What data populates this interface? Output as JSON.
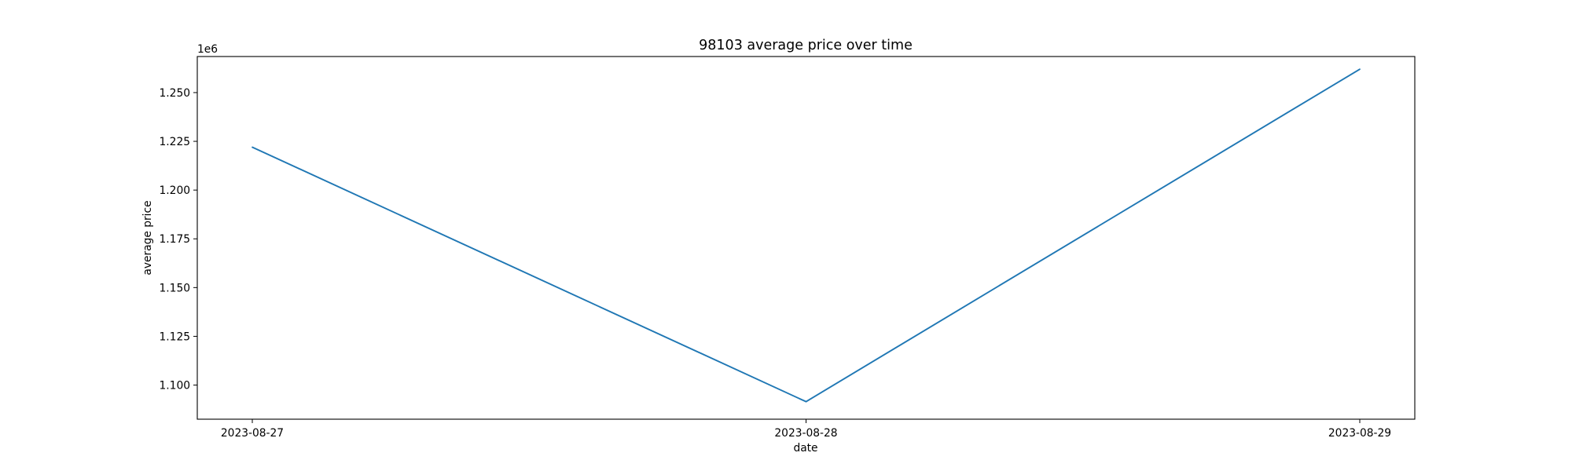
{
  "chart_data": {
    "type": "line",
    "title": "98103 average price over time",
    "xlabel": "date",
    "ylabel": "average price",
    "y_offset_label": "1e6",
    "x": [
      "2023-08-27",
      "2023-08-28",
      "2023-08-29"
    ],
    "series": [
      {
        "values": [
          1222000,
          1091500,
          1262000
        ],
        "color": "#1f77b4"
      }
    ],
    "ylim": [
      1082500,
      1268500
    ],
    "y_ticks": [
      1100000,
      1125000,
      1150000,
      1175000,
      1200000,
      1225000,
      1250000
    ],
    "y_tick_labels": [
      "1.100",
      "1.125",
      "1.150",
      "1.175",
      "1.200",
      "1.225",
      "1.250"
    ],
    "x_ticks": [
      "2023-08-27",
      "2023-08-28",
      "2023-08-29"
    ],
    "grid": false,
    "legend": "none"
  }
}
